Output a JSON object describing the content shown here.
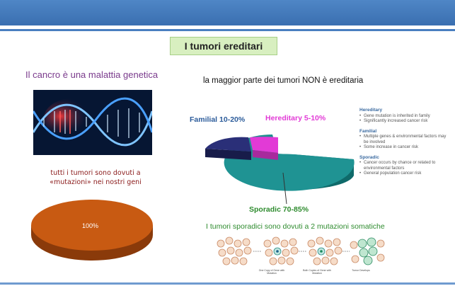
{
  "slide": {
    "title": "I tumori ereditari",
    "left_heading": "Il cancro è una malattia genetica",
    "right_heading": "la maggior parte dei tumori NON è ereditaria",
    "caption_line1": "tutti i tumori sono dovuti a",
    "caption_line2": "«mutazioni» nei nostri geni",
    "big_pie_label": "100%",
    "familial_label": "Familial 10-20%",
    "hereditary_label": "Hereditary 5-10%",
    "sporadic_label": "Sporadic 70-85%",
    "sporadic_note": "I tumori sporadici sono dovuti a 2 mutazioni somatiche",
    "cell_labels": [
      "One Copy of Gene with Mutation",
      "Both Copies of Gene with Mutation",
      "Tumor Develops"
    ]
  },
  "legend": [
    {
      "heading": "Hereditary",
      "items": [
        "Gene mutation is inherited in family",
        "Significantly increased cancer risk"
      ]
    },
    {
      "heading": "Familial",
      "items": [
        "Multiple genes & environmental factors may be involved",
        "Some increase in cancer risk"
      ]
    },
    {
      "heading": "Sporadic",
      "items": [
        "Cancer occurs by chance or related to environmental factors",
        "General population cancer risk"
      ]
    }
  ],
  "colors": {
    "sporadic": "#1f8f8f",
    "familial": "#2a2f78",
    "hereditary": "#e23ad6",
    "big_pie": "#c85a12"
  }
}
